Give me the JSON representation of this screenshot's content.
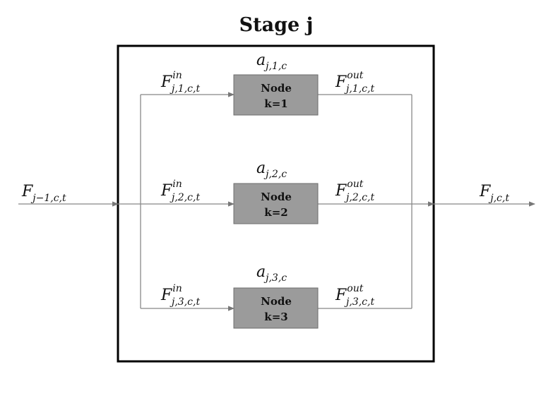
{
  "diagram": {
    "title": "Stage j",
    "input_flow": {
      "base": "F",
      "sub": "j−1,c,t"
    },
    "output_flow": {
      "base": "F",
      "sub": "j,c,t"
    },
    "nodes": [
      {
        "line1": "Node",
        "line2": "k=1",
        "activity": {
          "base": "a",
          "sub": "j,1,c"
        },
        "flow_in": {
          "base": "F",
          "sub": "j,1,c,t",
          "sup": "in"
        },
        "flow_out": {
          "base": "F",
          "sub": "j,1,c,t",
          "sup": "out"
        }
      },
      {
        "line1": "Node",
        "line2": "k=2",
        "activity": {
          "base": "a",
          "sub": "j,2,c"
        },
        "flow_in": {
          "base": "F",
          "sub": "j,2,c,t",
          "sup": "in"
        },
        "flow_out": {
          "base": "F",
          "sub": "j,2,c,t",
          "sup": "out"
        }
      },
      {
        "line1": "Node",
        "line2": "k=3",
        "activity": {
          "base": "a",
          "sub": "j,3,c"
        },
        "flow_in": {
          "base": "F",
          "sub": "j,3,c,t",
          "sup": "in"
        },
        "flow_out": {
          "base": "F",
          "sub": "j,3,c,t",
          "sup": "out"
        }
      }
    ],
    "colors": {
      "node_fill": "#9b9b9b",
      "node_stroke": "#6e6e6e",
      "line": "#888888",
      "frame": "#000000"
    }
  }
}
